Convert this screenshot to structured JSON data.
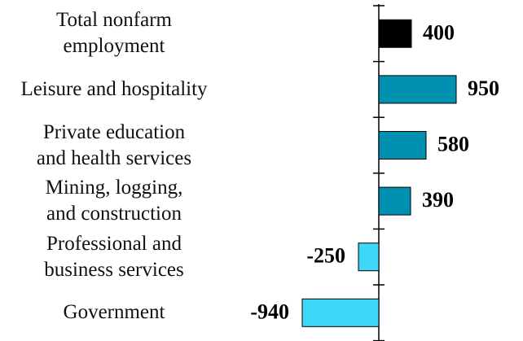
{
  "chart_data": {
    "type": "bar",
    "orientation": "horizontal",
    "categories": [
      "Total nonfarm\nemployment",
      "Leisure and hospitality",
      "Private education\nand health services",
      "Mining, logging,\nand construction",
      "Professional and\nbusiness services",
      "Government"
    ],
    "values": [
      400,
      950,
      580,
      390,
      -250,
      -940
    ],
    "colors": [
      "#000000",
      "#0090b0",
      "#0090b0",
      "#0090b0",
      "#3dd8f8",
      "#3dd8f8"
    ]
  }
}
